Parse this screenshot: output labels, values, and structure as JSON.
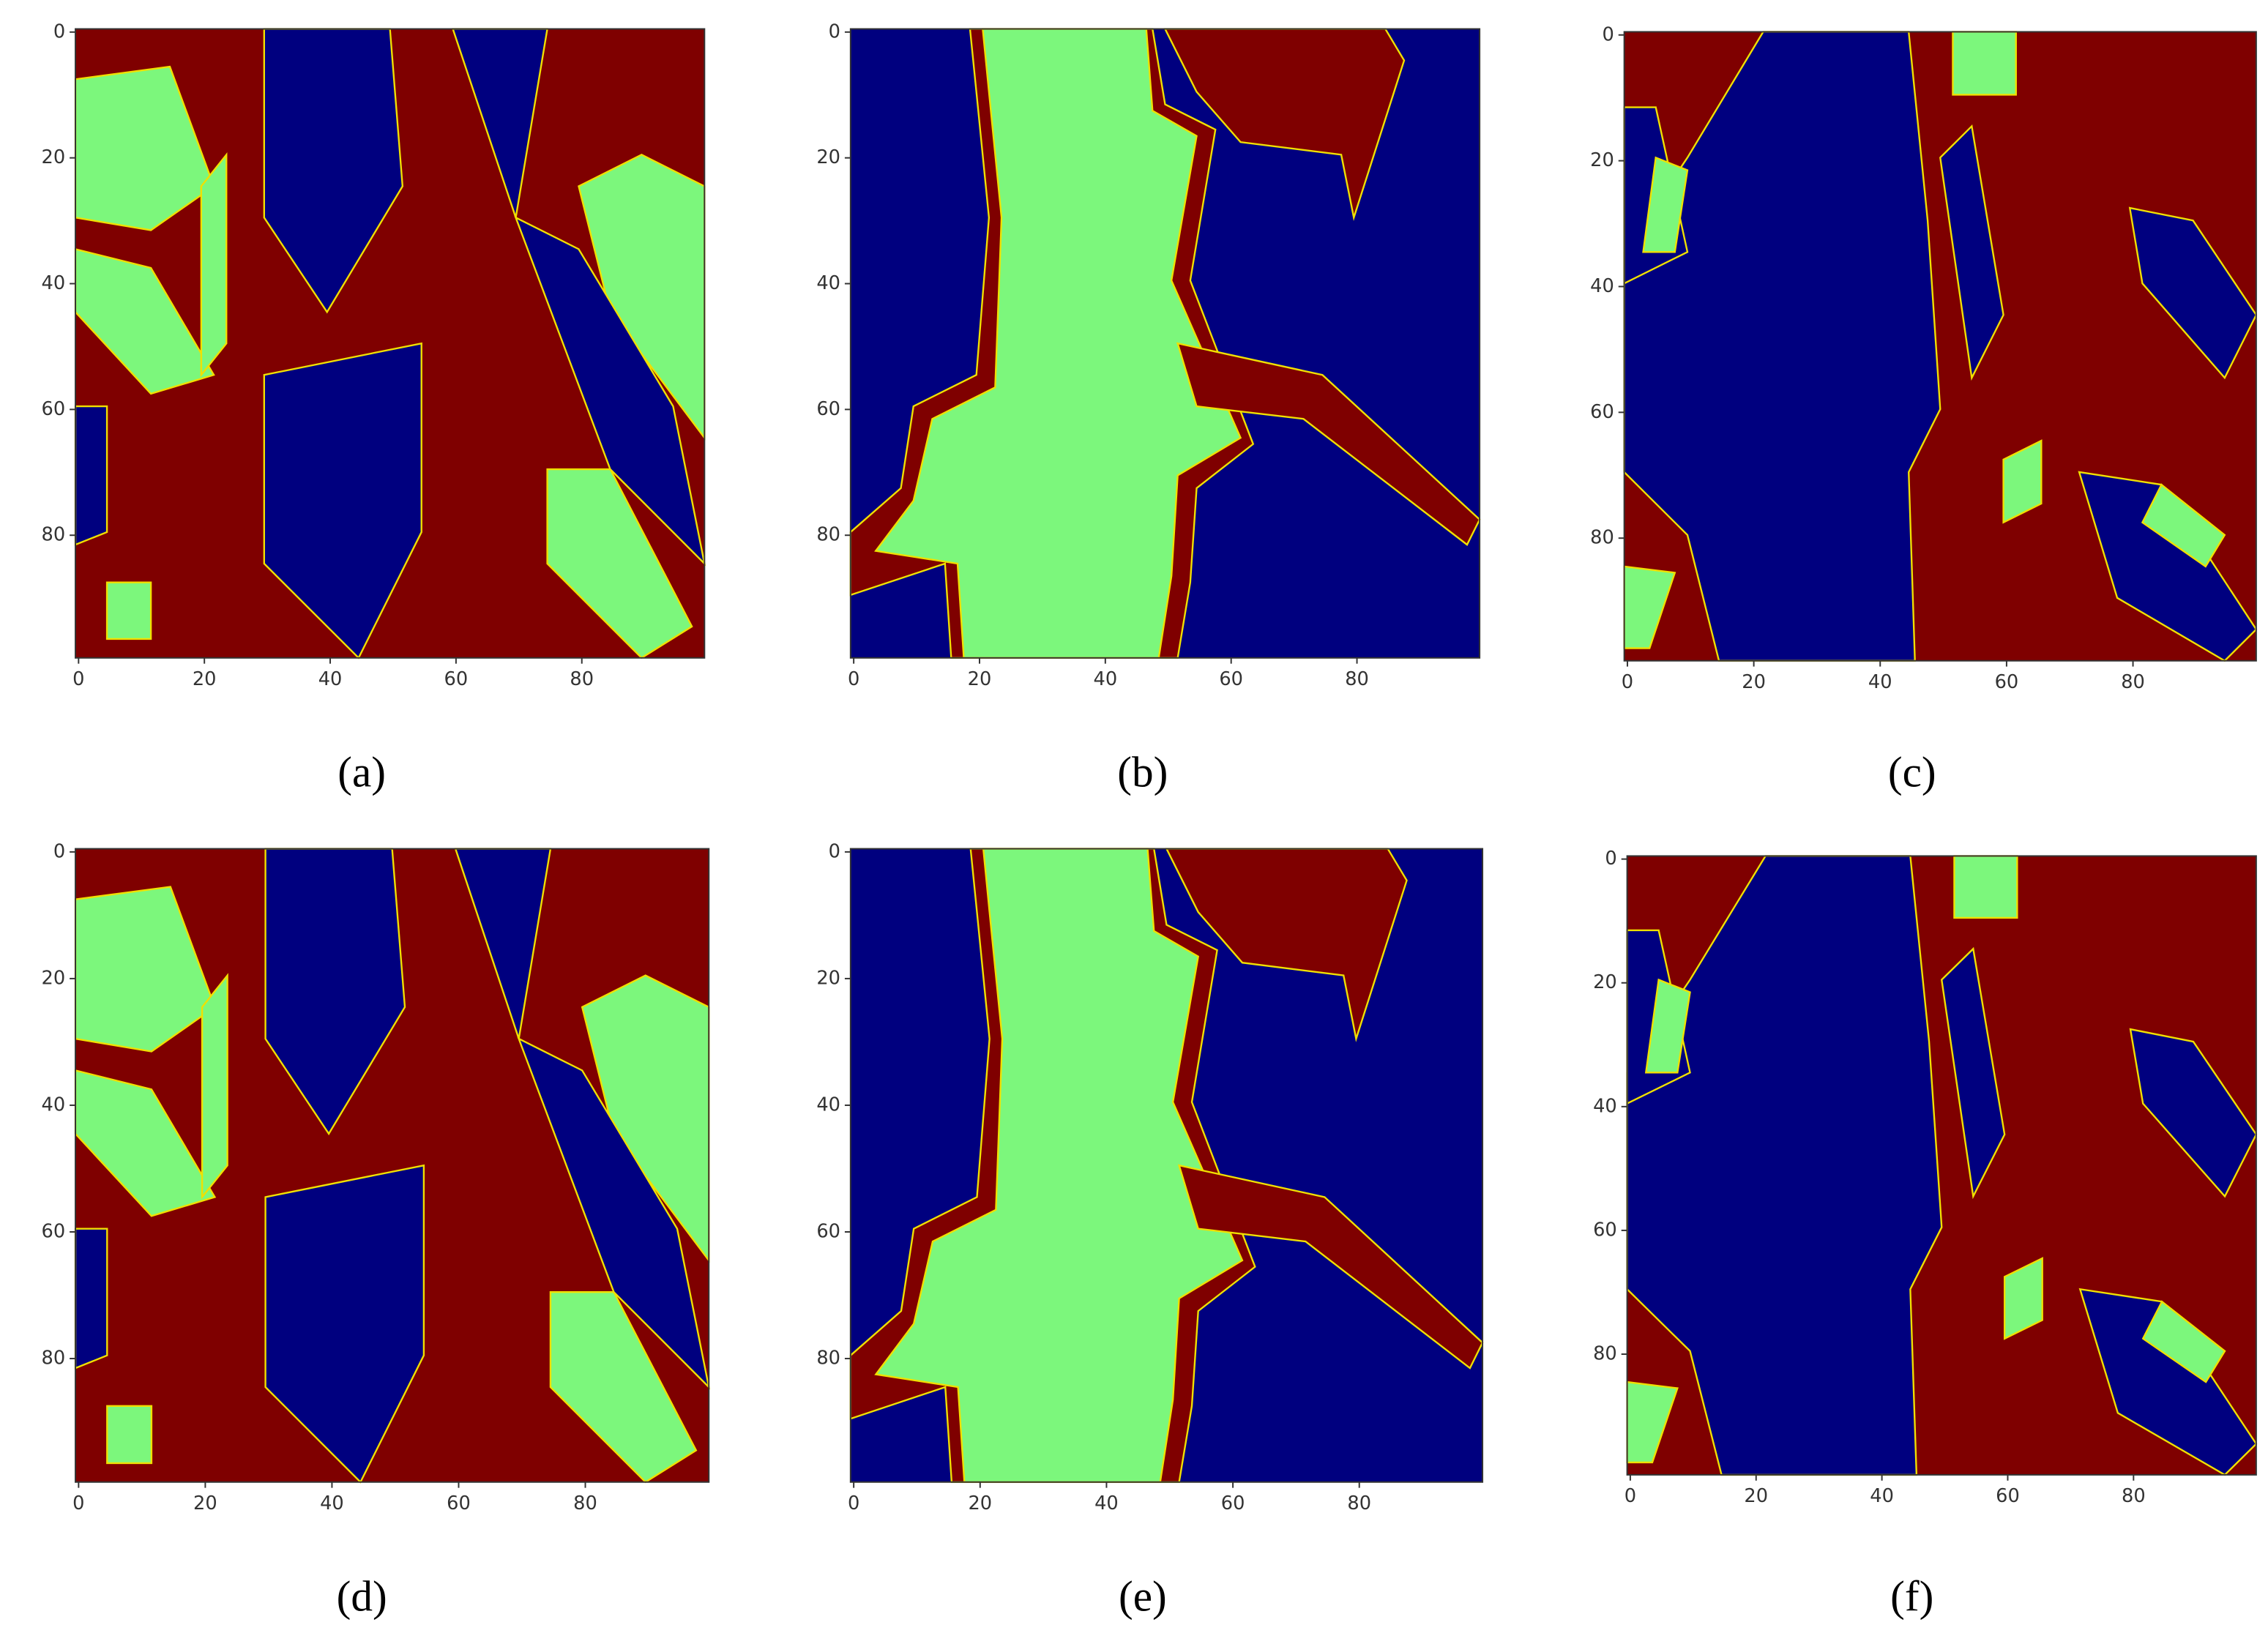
{
  "chart_data": [
    {
      "type": "image",
      "caption": "(a)",
      "xlim": [
        -0.5,
        99.5
      ],
      "ylim": [
        99.5,
        -0.5
      ],
      "xticks": [
        0,
        20,
        40,
        60,
        80
      ],
      "yticks": [
        0,
        20,
        40,
        60,
        80
      ],
      "colors": [
        "#00007f",
        "#7cf77c",
        "#7f0000"
      ]
    },
    {
      "type": "image",
      "caption": "(b)",
      "xlim": [
        -0.5,
        99.5
      ],
      "ylim": [
        99.5,
        -0.5
      ],
      "xticks": [
        0,
        20,
        40,
        60,
        80
      ],
      "yticks": [
        0,
        20,
        40,
        60,
        80
      ],
      "colors": [
        "#00007f",
        "#7cf77c",
        "#7f0000"
      ]
    },
    {
      "type": "image",
      "caption": "(c)",
      "xlim": [
        -0.5,
        99.5
      ],
      "ylim": [
        99.5,
        -0.5
      ],
      "xticks": [
        0,
        20,
        40,
        60,
        80
      ],
      "yticks": [
        0,
        20,
        40,
        60,
        80
      ],
      "colors": [
        "#00007f",
        "#7cf77c",
        "#7f0000"
      ]
    },
    {
      "type": "image",
      "caption": "(d)",
      "xlim": [
        -0.5,
        99.5
      ],
      "ylim": [
        99.5,
        -0.5
      ],
      "xticks": [
        0,
        20,
        40,
        60,
        80
      ],
      "yticks": [
        0,
        20,
        40,
        60,
        80
      ],
      "colors": [
        "#00007f",
        "#7cf77c",
        "#7f0000"
      ]
    },
    {
      "type": "image",
      "caption": "(e)",
      "xlim": [
        -0.5,
        99.5
      ],
      "ylim": [
        99.5,
        -0.5
      ],
      "xticks": [
        0,
        20,
        40,
        60,
        80
      ],
      "yticks": [
        0,
        20,
        40,
        60,
        80
      ],
      "colors": [
        "#00007f",
        "#7cf77c",
        "#7f0000"
      ]
    },
    {
      "type": "image",
      "caption": "(f)",
      "xlim": [
        -0.5,
        99.5
      ],
      "ylim": [
        99.5,
        -0.5
      ],
      "xticks": [
        0,
        20,
        40,
        60,
        80
      ],
      "yticks": [
        0,
        20,
        40,
        60,
        80
      ],
      "colors": [
        "#00007f",
        "#7cf77c",
        "#7f0000"
      ]
    }
  ]
}
